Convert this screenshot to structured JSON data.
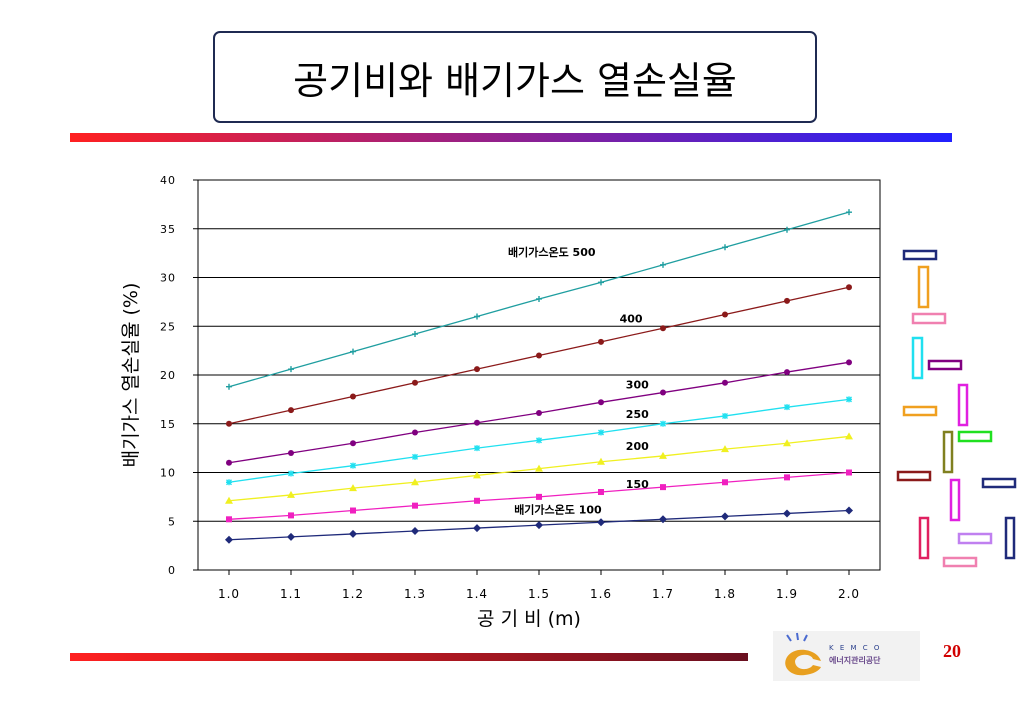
{
  "title": "공기비와 배기가스 열손실율",
  "page_number": "20",
  "logo": {
    "text_top": "K E M C O",
    "text_bottom": "에너지관리공단"
  },
  "colors": {
    "top_bar_start": "#ff2020",
    "top_bar_end": "#2020ff",
    "bottom_bar_start": "#ff2020",
    "bottom_bar_end": "#7a1a2a"
  },
  "decorations": [
    {
      "color": "#1f2a7a"
    },
    {
      "color": "#f0a020"
    },
    {
      "color": "#f080b0"
    },
    {
      "color": "#20e0f0"
    },
    {
      "color": "#800080"
    },
    {
      "color": "#f0a020"
    },
    {
      "color": "#e020e0"
    },
    {
      "color": "#808020"
    },
    {
      "color": "#20e020"
    },
    {
      "color": "#8b1a1a"
    },
    {
      "color": "#e020e0"
    },
    {
      "color": "#1f2a7a"
    },
    {
      "color": "#e02060"
    },
    {
      "color": "#c080f0"
    },
    {
      "color": "#1f2a7a"
    },
    {
      "color": "#f080b0"
    }
  ],
  "chart_data": {
    "type": "line",
    "xlabel": "공  기  비 (m)",
    "ylabel": "배기가스 열손실율 (%)",
    "x": [
      1.0,
      1.1,
      1.2,
      1.3,
      1.4,
      1.5,
      1.6,
      1.7,
      1.8,
      1.9,
      2.0
    ],
    "xlim": [
      0.95,
      2.05
    ],
    "ylim": [
      0,
      40
    ],
    "yticks": [
      0,
      5,
      10,
      15,
      20,
      25,
      30,
      35,
      40
    ],
    "grid": "horizontal",
    "series": [
      {
        "name": "배기가스온도 500",
        "color": "#1f9ea0",
        "marker": "plus",
        "values": [
          18.8,
          20.6,
          22.4,
          24.2,
          26.0,
          27.8,
          29.5,
          31.3,
          33.1,
          34.9,
          36.7
        ]
      },
      {
        "name": "400",
        "color": "#8b1a1a",
        "marker": "circle",
        "values": [
          15.0,
          16.4,
          17.8,
          19.2,
          20.6,
          22.0,
          23.4,
          24.8,
          26.2,
          27.6,
          29.0
        ]
      },
      {
        "name": "300",
        "color": "#800080",
        "marker": "circle",
        "values": [
          11.0,
          12.0,
          13.0,
          14.1,
          15.1,
          16.1,
          17.2,
          18.2,
          19.2,
          20.3,
          21.3
        ]
      },
      {
        "name": "250",
        "color": "#20e0f0",
        "marker": "star",
        "values": [
          9.0,
          9.9,
          10.7,
          11.6,
          12.5,
          13.3,
          14.1,
          15.0,
          15.8,
          16.7,
          17.5
        ]
      },
      {
        "name": "200",
        "color": "#f0f020",
        "marker": "triangle",
        "values": [
          7.1,
          7.7,
          8.4,
          9.0,
          9.7,
          10.4,
          11.1,
          11.7,
          12.4,
          13.0,
          13.7
        ]
      },
      {
        "name": "150",
        "color": "#f020c0",
        "marker": "square",
        "values": [
          5.2,
          5.6,
          6.1,
          6.6,
          7.1,
          7.5,
          8.0,
          8.5,
          9.0,
          9.5,
          10.0
        ]
      },
      {
        "name": "배기가스온도 100",
        "color": "#1f2a7a",
        "marker": "diamond",
        "values": [
          3.1,
          3.4,
          3.7,
          4.0,
          4.3,
          4.6,
          4.9,
          5.2,
          5.5,
          5.8,
          6.1
        ]
      }
    ],
    "annotations": [
      "배기가스온도 500",
      "400",
      "300",
      "250",
      "200",
      "150",
      "배기가스온도 100"
    ]
  }
}
